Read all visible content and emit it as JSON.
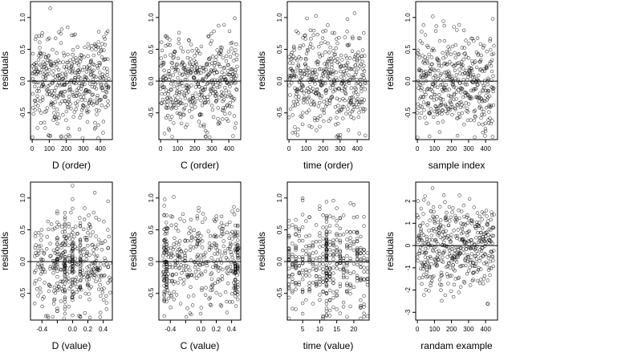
{
  "figure": {
    "background": "#ffffff",
    "point_color": "#000000",
    "line_color": "#000000"
  },
  "chart_data": [
    {
      "id": "p1",
      "type": "scatter",
      "xlabel": "D (order)",
      "ylabel": "residuals",
      "xlim": [
        -10,
        470
      ],
      "ylim": [
        -0.92,
        1.25
      ],
      "xticks": [
        0,
        100,
        200,
        300,
        400
      ],
      "xtick_labels": [
        "0",
        "100",
        "200",
        "300",
        "400"
      ],
      "yticks": [
        -0.5,
        0.0,
        0.5,
        1.0
      ],
      "ytick_labels": [
        "-0.5",
        "0.0",
        "0.5",
        "1.0"
      ],
      "hline": 0,
      "x_kind": "index",
      "n": 450,
      "y_sd": 0.38,
      "y_min": -0.9,
      "y_max": 1.2
    },
    {
      "id": "p2",
      "type": "scatter",
      "xlabel": "C (order)",
      "ylabel": "residuals",
      "xlim": [
        -10,
        470
      ],
      "ylim": [
        -0.92,
        1.25
      ],
      "xticks": [
        0,
        100,
        200,
        300,
        400
      ],
      "xtick_labels": [
        "0",
        "100",
        "200",
        "300",
        "400"
      ],
      "yticks": [
        -0.5,
        0.0,
        0.5,
        1.0
      ],
      "ytick_labels": [
        "-0.5",
        "0.0",
        "0.5",
        "1.0"
      ],
      "hline": 0,
      "x_kind": "index",
      "n": 450,
      "y_sd": 0.38,
      "y_min": -0.9,
      "y_max": 1.2
    },
    {
      "id": "p3",
      "type": "scatter",
      "xlabel": "time (order)",
      "ylabel": "residuals",
      "xlim": [
        -10,
        470
      ],
      "ylim": [
        -0.92,
        1.25
      ],
      "xticks": [
        0,
        100,
        200,
        300,
        400
      ],
      "xtick_labels": [
        "0",
        "100",
        "200",
        "300",
        "400"
      ],
      "yticks": [
        -0.5,
        0.0,
        0.5,
        1.0
      ],
      "ytick_labels": [
        "-0.5",
        "0.0",
        "0.5",
        "1.0"
      ],
      "hline": 0,
      "x_kind": "index",
      "n": 450,
      "y_sd": 0.38,
      "y_min": -0.9,
      "y_max": 1.2
    },
    {
      "id": "p4",
      "type": "scatter",
      "xlabel": "sample index",
      "ylabel": "residuals",
      "xlim": [
        -10,
        470
      ],
      "ylim": [
        -0.92,
        1.25
      ],
      "xticks": [
        0,
        100,
        200,
        300,
        400
      ],
      "xtick_labels": [
        "0",
        "100",
        "200",
        "300",
        "400"
      ],
      "yticks": [
        -0.5,
        0.0,
        0.5,
        1.0
      ],
      "ytick_labels": [
        "-0.5",
        "0.0",
        "0.5",
        "1.0"
      ],
      "hline": 0,
      "x_kind": "index",
      "n": 450,
      "y_sd": 0.38,
      "y_min": -0.9,
      "y_max": 1.2
    },
    {
      "id": "p5",
      "type": "scatter",
      "xlabel": "D (value)",
      "ylabel": "residuals",
      "xlim": [
        -0.55,
        0.52
      ],
      "ylim": [
        -0.92,
        1.25
      ],
      "xticks": [
        -0.4,
        -0.2,
        0.0,
        0.2,
        0.4
      ],
      "xtick_labels": [
        "-0.4",
        "",
        "0.0",
        "0.2",
        "0.4"
      ],
      "yticks": [
        -0.5,
        0.0,
        0.5,
        1.0
      ],
      "ytick_labels": [
        "-0.5",
        "0.0",
        "0.5",
        "1.0"
      ],
      "hline": 0,
      "x_kind": "clustered",
      "x_range": [
        -0.5,
        0.5
      ],
      "clusters": [
        -0.2,
        -0.1,
        0.0,
        0.1
      ],
      "n": 450,
      "y_sd": 0.38,
      "y_min": -0.9,
      "y_max": 1.2
    },
    {
      "id": "p6",
      "type": "scatter",
      "xlabel": "C (value)",
      "ylabel": "residuals",
      "xlim": [
        -0.55,
        0.52
      ],
      "ylim": [
        -0.92,
        1.25
      ],
      "xticks": [
        -0.4,
        -0.2,
        0.0,
        0.2,
        0.4
      ],
      "xtick_labels": [
        "-0.4",
        "",
        "0.0",
        "0.2",
        "0.4"
      ],
      "yticks": [
        -0.5,
        0.0,
        0.5,
        1.0
      ],
      "ytick_labels": [
        "-0.5",
        "0.0",
        "0.5",
        "1.0"
      ],
      "hline": 0,
      "x_kind": "clustered",
      "x_range": [
        -0.5,
        0.5
      ],
      "clusters": [
        -0.48,
        -0.45,
        0.45,
        0.48
      ],
      "n": 450,
      "y_sd": 0.38,
      "y_min": -0.9,
      "y_max": 1.2
    },
    {
      "id": "p7",
      "type": "scatter",
      "xlabel": "time (value)",
      "ylabel": "residuals",
      "xlim": [
        0.5,
        24.5
      ],
      "ylim": [
        -0.92,
        1.25
      ],
      "xticks": [
        5,
        10,
        15,
        20
      ],
      "xtick_labels": [
        "5",
        "10",
        "15",
        "20"
      ],
      "yticks": [
        -0.5,
        0.0,
        0.5,
        1.0
      ],
      "ytick_labels": [
        "-0.5",
        "0.0",
        "0.5",
        "1.0"
      ],
      "hline": 0,
      "x_kind": "integer",
      "x_range": [
        1,
        24
      ],
      "clusters": [
        12
      ],
      "n": 450,
      "y_sd": 0.38,
      "y_min": -0.9,
      "y_max": 1.2
    },
    {
      "id": "p8",
      "type": "scatter",
      "xlabel": "randam example",
      "ylabel": "residuals",
      "xlim": [
        -10,
        470
      ],
      "ylim": [
        -3.35,
        2.85
      ],
      "xticks": [
        0,
        100,
        200,
        300,
        400
      ],
      "xtick_labels": [
        "0",
        "100",
        "200",
        "300",
        "400"
      ],
      "yticks": [
        -3,
        -2,
        -1,
        0,
        1,
        2
      ],
      "ytick_labels": [
        "-3",
        "-2",
        "-1",
        "0",
        "1",
        "2"
      ],
      "hline": 0,
      "x_kind": "index",
      "n": 450,
      "y_sd": 1.0,
      "y_min": -3.2,
      "y_max": 2.6
    }
  ]
}
